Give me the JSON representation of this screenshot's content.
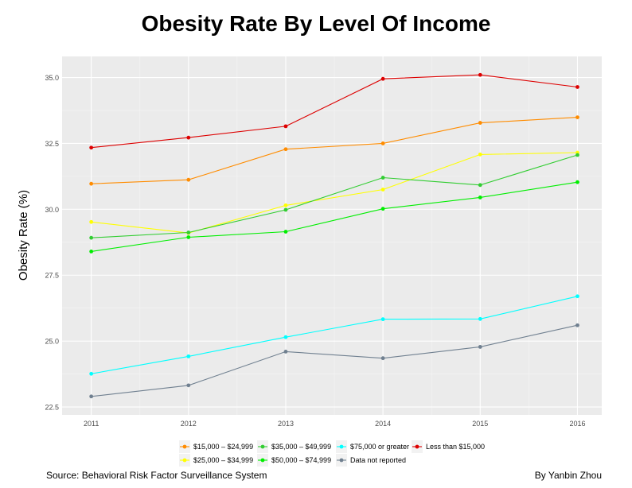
{
  "chart_data": {
    "type": "line",
    "title": "Obesity Rate By Level Of Income",
    "xlabel": "",
    "ylabel": "Obesity Rate (%)",
    "x": [
      2011,
      2012,
      2013,
      2014,
      2015,
      2016
    ],
    "x_tick_labels": [
      "2011",
      "2012",
      "2013",
      "2014",
      "2015",
      "2016"
    ],
    "y_ticks": [
      22.5,
      25.0,
      27.5,
      30.0,
      32.5,
      35.0
    ],
    "y_tick_labels": [
      "22.5",
      "25.0",
      "27.5",
      "30.0",
      "32.5",
      "35.0"
    ],
    "ylim": [
      22.2,
      35.8
    ],
    "xlim": [
      2010.7,
      2016.25
    ],
    "grid": true,
    "legend_position": "bottom",
    "series": [
      {
        "name": "$15,000 – $24,999",
        "color": "#ff8c00",
        "values": [
          30.97,
          31.12,
          32.28,
          32.5,
          33.28,
          33.49
        ]
      },
      {
        "name": "$25,000 – $34,999",
        "color": "#ffff00",
        "values": [
          29.52,
          29.1,
          30.15,
          30.75,
          32.08,
          32.15
        ]
      },
      {
        "name": "$35,000 – $49,999",
        "color": "#32cd32",
        "values": [
          28.92,
          29.12,
          29.98,
          31.2,
          30.92,
          32.06
        ]
      },
      {
        "name": "$50,000 – $74,999",
        "color": "#00ee00",
        "values": [
          28.4,
          28.94,
          29.15,
          30.02,
          30.45,
          31.03
        ]
      },
      {
        "name": "$75,000 or greater",
        "color": "#00ffff",
        "values": [
          23.76,
          24.42,
          25.15,
          25.83,
          25.84,
          26.7
        ]
      },
      {
        "name": "Data not reported",
        "color": "#708090",
        "values": [
          22.9,
          23.32,
          24.6,
          24.35,
          24.78,
          25.6
        ]
      },
      {
        "name": "Less than $15,000",
        "color": "#dd0000",
        "values": [
          32.34,
          32.72,
          33.15,
          34.95,
          35.1,
          34.64
        ]
      }
    ]
  },
  "captions": {
    "source": "Source: Behavioral Risk Factor Surveillance System",
    "author": "By Yanbin Zhou"
  }
}
